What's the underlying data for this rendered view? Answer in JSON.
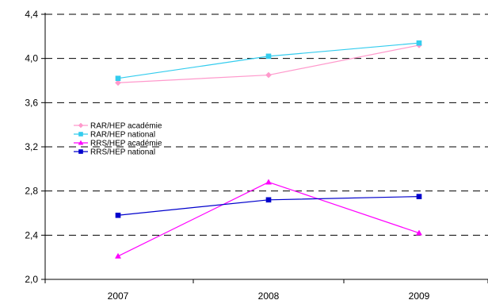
{
  "chart_data": {
    "type": "line",
    "categories": [
      "2007",
      "2008",
      "2009"
    ],
    "y_tick_labels": [
      "2,0",
      "2,4",
      "2,8",
      "3,2",
      "3,6",
      "4,0",
      "4,4"
    ],
    "ylim": [
      2.0,
      4.4
    ],
    "grid": "horizontal dashed",
    "legend_position": "center-left",
    "series": [
      {
        "name": "RAR/HEP académie",
        "values": [
          3.78,
          3.85,
          4.12
        ],
        "color": "#ff99cc",
        "marker": "diamond"
      },
      {
        "name": "RAR/HEP national",
        "values": [
          3.82,
          4.02,
          4.14
        ],
        "color": "#33ccee",
        "marker": "square"
      },
      {
        "name": "RRS/HEP académie",
        "values": [
          2.21,
          2.88,
          2.42
        ],
        "color": "#ff00ff",
        "marker": "triangle"
      },
      {
        "name": "RRS/HEP national",
        "values": [
          2.58,
          2.72,
          2.75
        ],
        "color": "#0000cc",
        "marker": "square"
      }
    ]
  }
}
